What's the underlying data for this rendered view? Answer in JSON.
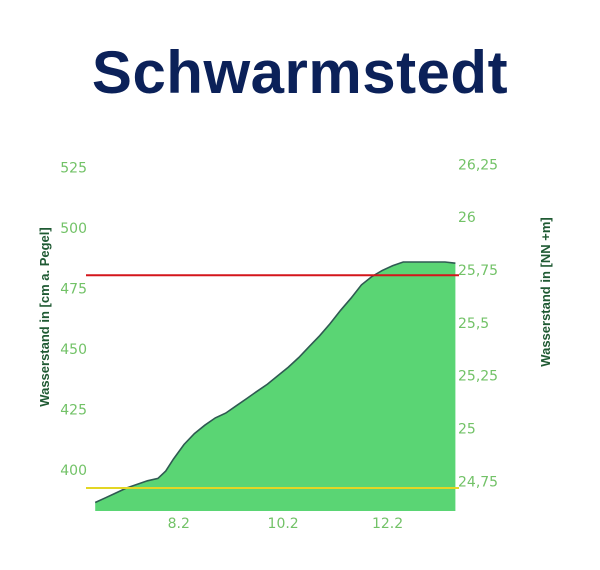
{
  "header": {
    "title": "Schwarmstedt"
  },
  "colors": {
    "title": "#0b2159",
    "area_fill": "#5ad574",
    "area_edge": "#2f5a52",
    "tick_text": "#72c267",
    "axis_title": "#1f5a33",
    "high_line": "#d4151b",
    "low_line": "#e3d624"
  },
  "chart_data": {
    "type": "area",
    "title": "Schwarmstedt",
    "xlabel": "",
    "ylabel": "Wasserstand in [cm a. Pegel]",
    "y2label": "Wasserstand in [NN +m]",
    "xticks": [
      {
        "value": 8.2,
        "label": "8.2"
      },
      {
        "value": 10.2,
        "label": "10.2"
      },
      {
        "value": 12.2,
        "label": "12.2"
      }
    ],
    "xlim": [
      6.5,
      13.55
    ],
    "yticks": [
      {
        "value": 400,
        "label": "400"
      },
      {
        "value": 425,
        "label": "425"
      },
      {
        "value": 450,
        "label": "450"
      },
      {
        "value": 475,
        "label": "475"
      },
      {
        "value": 500,
        "label": "500"
      },
      {
        "value": 525,
        "label": "525"
      }
    ],
    "ylim": [
      383,
      529
    ],
    "y2ticks": [
      {
        "value": 24.75,
        "label": "24,75"
      },
      {
        "value": 25,
        "label": "25"
      },
      {
        "value": 25.25,
        "label": "25,25"
      },
      {
        "value": 25.5,
        "label": "25,5"
      },
      {
        "value": 25.75,
        "label": "25,75"
      },
      {
        "value": 26,
        "label": "26"
      },
      {
        "value": 26.25,
        "label": "26,25"
      }
    ],
    "y2lim": [
      24.61,
      26.28
    ],
    "reference_lines": [
      {
        "name": "high",
        "value": 480.5,
        "color": "#d4151b"
      },
      {
        "name": "low",
        "value": 392.5,
        "color": "#e3d624"
      }
    ],
    "x": [
      6.6,
      6.8,
      7.0,
      7.2,
      7.4,
      7.6,
      7.8,
      7.95,
      8.1,
      8.3,
      8.5,
      8.7,
      8.9,
      9.1,
      9.3,
      9.5,
      9.7,
      9.9,
      10.1,
      10.3,
      10.5,
      10.7,
      10.9,
      11.1,
      11.3,
      11.5,
      11.7,
      11.9,
      12.1,
      12.3,
      12.5,
      12.7,
      12.9,
      13.1,
      13.3,
      13.5
    ],
    "values": [
      386.5,
      388.5,
      390.5,
      392.5,
      394.0,
      395.5,
      396.5,
      399.5,
      404.5,
      410.5,
      415.0,
      418.5,
      421.5,
      423.5,
      426.5,
      429.5,
      432.5,
      435.5,
      439.0,
      442.5,
      446.5,
      451.0,
      455.5,
      460.5,
      466.0,
      471.0,
      476.5,
      480.0,
      482.5,
      484.5,
      486.0,
      486.0,
      486.0,
      486.0,
      486.0,
      485.5
    ]
  }
}
